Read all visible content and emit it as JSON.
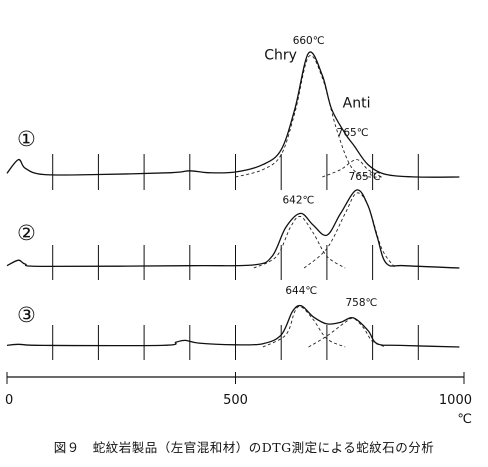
{
  "chart_data": {
    "type": "line",
    "x_unit": "℃",
    "xlim": [
      0,
      1000
    ],
    "x_tick_labels": [
      "0",
      "500",
      "1000"
    ],
    "x_tick_values": [
      0,
      500,
      1000
    ],
    "minor_ticks": [
      100,
      200,
      300,
      400,
      500,
      600,
      700,
      800,
      900
    ],
    "series": [
      {
        "name": "①",
        "curve": [
          [
            0,
            0.03
          ],
          [
            25,
            0.14
          ],
          [
            40,
            0.07
          ],
          [
            80,
            0.02
          ],
          [
            200,
            0.02
          ],
          [
            360,
            0.035
          ],
          [
            400,
            0.05
          ],
          [
            440,
            0.035
          ],
          [
            500,
            0.04
          ],
          [
            560,
            0.1
          ],
          [
            600,
            0.22
          ],
          [
            630,
            0.55
          ],
          [
            660,
            1.0
          ],
          [
            690,
            0.82
          ],
          [
            710,
            0.55
          ],
          [
            740,
            0.35
          ],
          [
            760,
            0.25
          ],
          [
            790,
            0.1
          ],
          [
            830,
            0.02
          ],
          [
            900,
            0.0
          ],
          [
            990,
            0.0
          ]
        ],
        "components": [
          {
            "label": "Chry",
            "points": [
              [
                500,
                0.0
              ],
              [
                560,
                0.06
              ],
              [
                600,
                0.18
              ],
              [
                630,
                0.52
              ],
              [
                660,
                0.97
              ],
              [
                690,
                0.8
              ],
              [
                720,
                0.4
              ],
              [
                750,
                0.1
              ],
              [
                780,
                0.01
              ],
              [
                820,
                0.0
              ]
            ]
          },
          {
            "label": "Anti",
            "points": [
              [
                690,
                0.0
              ],
              [
                730,
                0.06
              ],
              [
                765,
                0.14
              ],
              [
                790,
                0.06
              ],
              [
                820,
                0.0
              ]
            ]
          }
        ],
        "peak_labels": [
          {
            "text": "660℃",
            "x": 660,
            "y": 1.0
          },
          {
            "text": "765℃",
            "x": 765,
            "y": 0.25
          },
          {
            "text": "Chry",
            "x": 660,
            "y": 0.85
          },
          {
            "text": "Anti",
            "x": 765,
            "y": 0.4
          }
        ]
      },
      {
        "name": "②",
        "curve": [
          [
            0,
            0.03
          ],
          [
            25,
            0.1
          ],
          [
            40,
            0.05
          ],
          [
            80,
            0.02
          ],
          [
            400,
            0.03
          ],
          [
            540,
            0.04
          ],
          [
            580,
            0.15
          ],
          [
            610,
            0.52
          ],
          [
            642,
            0.7
          ],
          [
            670,
            0.55
          ],
          [
            700,
            0.42
          ],
          [
            730,
            0.7
          ],
          [
            765,
            1.0
          ],
          [
            790,
            0.8
          ],
          [
            810,
            0.4
          ],
          [
            830,
            0.06
          ],
          [
            870,
            0.03
          ],
          [
            990,
            0.0
          ]
        ],
        "components": [
          {
            "points": [
              [
                540,
                0.0
              ],
              [
                590,
                0.15
              ],
              [
                620,
                0.52
              ],
              [
                642,
                0.66
              ],
              [
                670,
                0.45
              ],
              [
                700,
                0.15
              ],
              [
                740,
                0.0
              ]
            ]
          },
          {
            "points": [
              [
                650,
                0.0
              ],
              [
                700,
                0.25
              ],
              [
                740,
                0.7
              ],
              [
                765,
                0.96
              ],
              [
                790,
                0.8
              ],
              [
                820,
                0.25
              ],
              [
                850,
                0.0
              ]
            ]
          }
        ],
        "peak_labels": [
          {
            "text": "642℃",
            "x": 642,
            "y": 0.7
          },
          {
            "text": "765℃",
            "x": 765,
            "y": 1.0
          }
        ]
      },
      {
        "name": "③",
        "curve": [
          [
            0,
            0.03
          ],
          [
            25,
            0.05
          ],
          [
            80,
            0.03
          ],
          [
            340,
            0.03
          ],
          [
            370,
            0.09
          ],
          [
            390,
            0.12
          ],
          [
            420,
            0.07
          ],
          [
            500,
            0.04
          ],
          [
            560,
            0.06
          ],
          [
            600,
            0.22
          ],
          [
            625,
            0.65
          ],
          [
            644,
            0.75
          ],
          [
            670,
            0.55
          ],
          [
            700,
            0.42
          ],
          [
            730,
            0.45
          ],
          [
            758,
            0.53
          ],
          [
            790,
            0.3
          ],
          [
            810,
            0.06
          ],
          [
            860,
            0.03
          ],
          [
            990,
            0.0
          ]
        ],
        "components": [
          {
            "points": [
              [
                560,
                0.0
              ],
              [
                610,
                0.22
              ],
              [
                630,
                0.65
              ],
              [
                644,
                0.73
              ],
              [
                670,
                0.5
              ],
              [
                700,
                0.15
              ],
              [
                740,
                0.0
              ]
            ]
          },
          {
            "points": [
              [
                660,
                0.0
              ],
              [
                700,
                0.2
              ],
              [
                740,
                0.45
              ],
              [
                758,
                0.52
              ],
              [
                780,
                0.35
              ],
              [
                800,
                0.1
              ],
              [
                830,
                0.0
              ]
            ]
          }
        ],
        "peak_labels": [
          {
            "text": "644℃",
            "x": 644,
            "y": 0.75
          },
          {
            "text": "758℃",
            "x": 758,
            "y": 0.53
          }
        ]
      }
    ]
  },
  "caption": "図９　蛇紋岩製品（左官混和材）のDTG測定による蛇紋石の分析"
}
